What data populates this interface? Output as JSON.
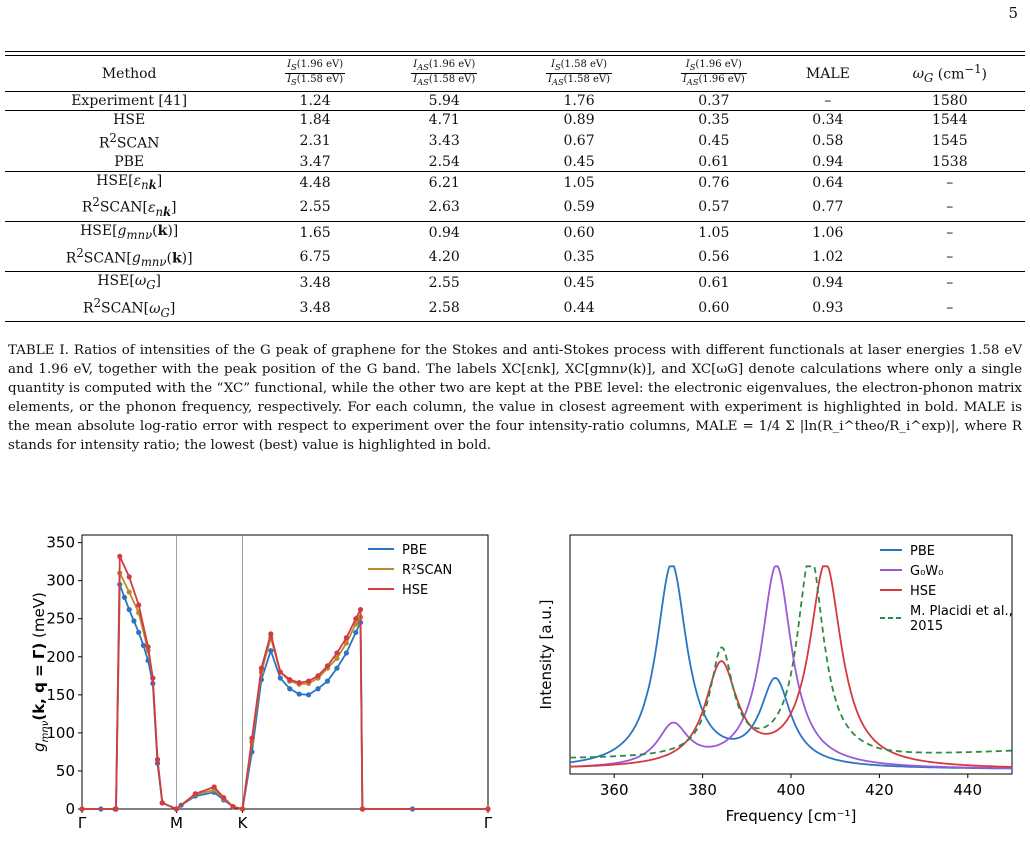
{
  "page_number": "5",
  "table": {
    "headers": [
      "Method",
      "I_S(1.96 eV)/I_S(1.58 eV)",
      "I_AS(1.96 eV)/I_AS(1.58 eV)",
      "I_S(1.58 eV)/I_AS(1.58 eV)",
      "I_S(1.96 eV)/I_AS(1.96 eV)",
      "MALE",
      "ω_G (cm⁻¹)"
    ],
    "rows": [
      {
        "method": "Experiment [41]",
        "v": [
          "1.24",
          "5.94",
          "1.76",
          "0.37",
          "–",
          "1580"
        ]
      },
      {
        "method": "HSE",
        "v": [
          "1.84",
          "4.71",
          "0.89",
          "0.35",
          "0.34",
          "1544"
        ]
      },
      {
        "method": "R²SCAN",
        "v": [
          "2.31",
          "3.43",
          "0.67",
          "0.45",
          "0.58",
          "1545"
        ]
      },
      {
        "method": "PBE",
        "v": [
          "3.47",
          "2.54",
          "0.45",
          "0.61",
          "0.94",
          "1538"
        ]
      },
      {
        "method": "HSE[εnk]",
        "v": [
          "4.48",
          "6.21",
          "1.05",
          "0.76",
          "0.64",
          "–"
        ]
      },
      {
        "method": "R²SCAN[εnk]",
        "v": [
          "2.55",
          "2.63",
          "0.59",
          "0.57",
          "0.77",
          "–"
        ]
      },
      {
        "method": "HSE[gmnν(k)]",
        "v": [
          "1.65",
          "0.94",
          "0.60",
          "1.05",
          "1.06",
          "–"
        ]
      },
      {
        "method": "R²SCAN[gmnν(k)]",
        "v": [
          "6.75",
          "4.20",
          "0.35",
          "0.56",
          "1.02",
          "–"
        ]
      },
      {
        "method": "HSE[ωG]",
        "v": [
          "3.48",
          "2.55",
          "0.45",
          "0.61",
          "0.94",
          "–"
        ]
      },
      {
        "method": "R²SCAN[ωG]",
        "v": [
          "3.48",
          "2.58",
          "0.44",
          "0.60",
          "0.93",
          "–"
        ]
      }
    ]
  },
  "caption": "TABLE I. Ratios of intensities of the G peak of graphene for the Stokes and anti-Stokes process with different functionals at laser energies 1.58 eV and 1.96 eV, together with the peak position of the G band. The labels XC[εnk], XC[gmnν(k)], and XC[ωG] denote calculations where only a single quantity is computed with the “XC” functional, while the other two are kept at the PBE level: the electronic eigenvalues, the electron-phonon matrix elements, or the phonon frequency, respectively. For each column, the value in closest agreement with experiment is highlighted in bold. MALE is the mean absolute log-ratio error with respect to experiment over the four intensity-ratio columns, MALE = 1/4 Σ |ln(R_i^theo/R_i^exp)|, where R stands for intensity ratio; the lowest (best) value is highlighted in bold.",
  "colors": {
    "pbe": "#2a74c5",
    "r2scan": "#b8892e",
    "hse": "#d23b3f",
    "g0w0": "#9b59d6",
    "placidi": "#2e8b45"
  },
  "chart_data": [
    {
      "type": "line",
      "ylabel": "gmnν(k, q = Γ) (meV)",
      "xlabel": "",
      "x_ticks": [
        "Γ",
        "M",
        "K",
        "Γ"
      ],
      "ylim": [
        0,
        360
      ],
      "y_ticks": [
        0,
        50,
        100,
        150,
        200,
        250,
        300,
        350
      ],
      "legend_position": "top-right",
      "series": [
        {
          "name": "PBE",
          "points": [
            [
              0,
              0
            ],
            [
              0.2,
              0
            ],
            [
              0.35,
              0
            ],
            [
              0.36,
              0
            ],
            [
              0.4,
              295
            ],
            [
              0.45,
              278
            ],
            [
              0.5,
              262
            ],
            [
              0.55,
              247
            ],
            [
              0.6,
              232
            ],
            [
              0.65,
              215
            ],
            [
              0.7,
              195
            ],
            [
              0.75,
              165
            ],
            [
              0.8,
              60
            ],
            [
              0.85,
              8
            ],
            [
              1.0,
              0
            ],
            [
              1.05,
              5
            ],
            [
              1.2,
              17
            ],
            [
              1.4,
              22
            ],
            [
              1.5,
              12
            ],
            [
              1.6,
              3
            ],
            [
              1.7,
              0
            ],
            [
              1.8,
              75
            ],
            [
              1.9,
              170
            ],
            [
              2.0,
              208
            ],
            [
              2.1,
              172
            ],
            [
              2.2,
              158
            ],
            [
              2.3,
              151
            ],
            [
              2.4,
              150
            ],
            [
              2.5,
              158
            ],
            [
              2.6,
              168
            ],
            [
              2.7,
              185
            ],
            [
              2.8,
              205
            ],
            [
              2.9,
              232
            ],
            [
              2.95,
              245
            ],
            [
              2.97,
              0
            ],
            [
              3.5,
              0
            ],
            [
              4.3,
              0
            ]
          ]
        },
        {
          "name": "R²SCAN",
          "points": [
            [
              0,
              0
            ],
            [
              0.36,
              0
            ],
            [
              0.4,
              310
            ],
            [
              0.5,
              285
            ],
            [
              0.6,
              258
            ],
            [
              0.7,
              208
            ],
            [
              0.75,
              172
            ],
            [
              0.8,
              65
            ],
            [
              0.85,
              8
            ],
            [
              1.0,
              0
            ],
            [
              1.2,
              19
            ],
            [
              1.4,
              25
            ],
            [
              1.5,
              14
            ],
            [
              1.6,
              3
            ],
            [
              1.7,
              0
            ],
            [
              1.8,
              88
            ],
            [
              1.9,
              180
            ],
            [
              2.0,
              225
            ],
            [
              2.1,
              180
            ],
            [
              2.2,
              168
            ],
            [
              2.3,
              164
            ],
            [
              2.4,
              165
            ],
            [
              2.5,
              172
            ],
            [
              2.6,
              185
            ],
            [
              2.7,
              198
            ],
            [
              2.8,
              218
            ],
            [
              2.9,
              243
            ],
            [
              2.95,
              252
            ],
            [
              2.97,
              0
            ],
            [
              4.3,
              0
            ]
          ]
        },
        {
          "name": "HSE",
          "points": [
            [
              0,
              0
            ],
            [
              0.36,
              0
            ],
            [
              0.4,
              332
            ],
            [
              0.5,
              305
            ],
            [
              0.6,
              268
            ],
            [
              0.7,
              213
            ],
            [
              0.75,
              172
            ],
            [
              0.8,
              65
            ],
            [
              0.85,
              8
            ],
            [
              1.0,
              0
            ],
            [
              1.2,
              20
            ],
            [
              1.4,
              29
            ],
            [
              1.5,
              15
            ],
            [
              1.6,
              3
            ],
            [
              1.7,
              0
            ],
            [
              1.8,
              93
            ],
            [
              1.9,
              185
            ],
            [
              2.0,
              230
            ],
            [
              2.1,
              180
            ],
            [
              2.2,
              170
            ],
            [
              2.3,
              166
            ],
            [
              2.4,
              168
            ],
            [
              2.5,
              175
            ],
            [
              2.6,
              188
            ],
            [
              2.7,
              205
            ],
            [
              2.8,
              225
            ],
            [
              2.9,
              250
            ],
            [
              2.95,
              262
            ],
            [
              2.97,
              0
            ],
            [
              4.3,
              0
            ]
          ]
        }
      ]
    },
    {
      "type": "line",
      "ylabel": "Intensity [a.u.]",
      "xlabel": "Frequency [cm⁻¹]",
      "xlim": [
        350,
        450
      ],
      "x_ticks": [
        360,
        380,
        400,
        420,
        440
      ],
      "legend_position": "top-right",
      "series": [
        {
          "name": "PBE",
          "peaks": [
            [
              373,
              1.0,
              4.2
            ],
            [
              396.5,
              0.42,
              4.2
            ]
          ]
        },
        {
          "name": "G₀W₀",
          "peaks": [
            [
              373.3,
              0.2,
              4.2
            ],
            [
              396.7,
              1.0,
              4.2
            ]
          ]
        },
        {
          "name": "HSE",
          "peaks": [
            [
              384.2,
              0.5,
              4.4
            ],
            [
              407.8,
              1.0,
              4.4
            ]
          ]
        },
        {
          "name": "M. Placidi et al., 2015",
          "dashed": true,
          "peaks": [
            [
              384.3,
              0.52,
              3.2
            ],
            [
              404.4,
              1.0,
              3.6
            ]
          ],
          "background": 0.05
        }
      ]
    }
  ]
}
